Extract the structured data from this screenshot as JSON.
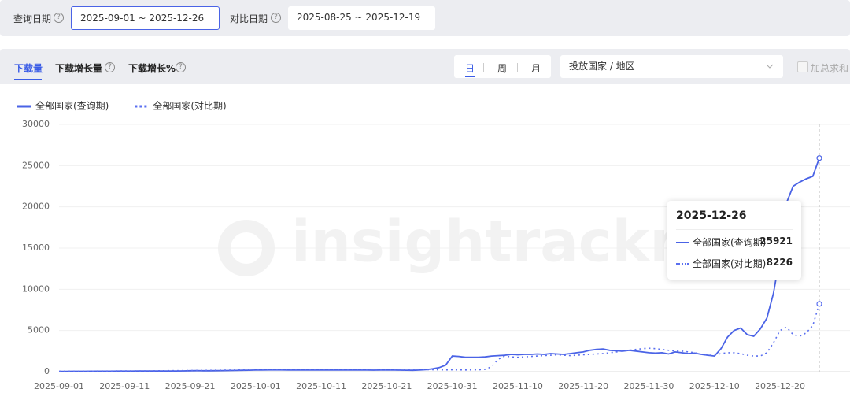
{
  "filters": {
    "query_label": "查询日期",
    "query_range": "2025-09-01 ~ 2025-12-26",
    "compare_label": "对比日期",
    "compare_range": "2025-08-25 ~ 2025-12-19"
  },
  "tabs": [
    "下载量",
    "下载增长量",
    "下载增长%"
  ],
  "granularity": [
    "日",
    "周",
    "月"
  ],
  "region_select": "投放国家 / 地区",
  "sum_checkbox": "加总求和",
  "watermark": "insightrackr",
  "chart_data": {
    "type": "line",
    "categories": [
      "2025-09-01",
      null,
      null,
      null,
      null,
      null,
      null,
      null,
      null,
      null,
      "2025-09-11",
      null,
      null,
      null,
      null,
      null,
      null,
      null,
      null,
      null,
      "2025-09-21",
      null,
      null,
      null,
      null,
      null,
      null,
      null,
      null,
      null,
      "2025-10-01",
      null,
      null,
      null,
      null,
      null,
      null,
      null,
      null,
      null,
      "2025-10-11",
      null,
      null,
      null,
      null,
      null,
      null,
      null,
      null,
      null,
      "2025-10-21",
      null,
      null,
      null,
      null,
      null,
      null,
      null,
      null,
      null,
      "2025-10-31",
      null,
      null,
      null,
      null,
      null,
      null,
      null,
      null,
      null,
      "2025-11-10",
      null,
      null,
      null,
      null,
      null,
      null,
      null,
      null,
      null,
      "2025-11-20",
      null,
      null,
      null,
      null,
      null,
      null,
      null,
      null,
      null,
      "2025-11-30",
      null,
      null,
      null,
      null,
      null,
      null,
      null,
      null,
      null,
      "2025-12-10",
      null,
      null,
      null,
      null,
      null,
      null,
      null,
      null,
      null,
      "2025-12-20",
      null,
      null,
      null,
      null,
      null,
      null
    ],
    "series": [
      {
        "name": "全部国家(查询期)",
        "color": "#4a63e6",
        "style": "solid",
        "values": [
          30,
          40,
          50,
          50,
          50,
          60,
          60,
          60,
          60,
          70,
          70,
          70,
          80,
          80,
          80,
          80,
          90,
          90,
          90,
          100,
          110,
          120,
          110,
          110,
          120,
          130,
          140,
          150,
          170,
          180,
          200,
          210,
          220,
          230,
          220,
          210,
          210,
          200,
          200,
          210,
          220,
          210,
          200,
          200,
          210,
          200,
          210,
          200,
          190,
          200,
          210,
          200,
          190,
          180,
          170,
          200,
          250,
          350,
          500,
          800,
          1900,
          1850,
          1750,
          1750,
          1750,
          1800,
          1900,
          1950,
          2000,
          2100,
          2050,
          2100,
          2100,
          2150,
          2100,
          2200,
          2150,
          2100,
          2200,
          2300,
          2400,
          2600,
          2700,
          2750,
          2600,
          2550,
          2500,
          2600,
          2500,
          2400,
          2300,
          2250,
          2300,
          2150,
          2400,
          2300,
          2200,
          2250,
          2100,
          2000,
          1900,
          2800,
          4200,
          5000,
          5300,
          4500,
          4300,
          5200,
          6500,
          9500,
          14000,
          20500,
          22500,
          23000,
          23400,
          23700,
          25921
        ]
      },
      {
        "name": "全部国家(对比期)",
        "color": "#5a6ff0",
        "style": "dotted",
        "values": [
          50,
          60,
          60,
          60,
          70,
          70,
          80,
          80,
          80,
          90,
          90,
          90,
          100,
          100,
          100,
          110,
          110,
          120,
          120,
          130,
          130,
          140,
          150,
          160,
          170,
          180,
          190,
          200,
          210,
          220,
          250,
          260,
          270,
          280,
          280,
          270,
          270,
          260,
          260,
          270,
          280,
          290,
          270,
          260,
          250,
          260,
          270,
          260,
          250,
          240,
          230,
          240,
          230,
          220,
          230,
          240,
          250,
          240,
          230,
          220,
          230,
          220,
          210,
          220,
          230,
          300,
          600,
          1500,
          1900,
          1800,
          1750,
          1800,
          1850,
          1900,
          1950,
          2000,
          2050,
          2000,
          1950,
          2000,
          2050,
          2100,
          2150,
          2200,
          2300,
          2400,
          2500,
          2600,
          2700,
          2800,
          2850,
          2800,
          2700,
          2600,
          2500,
          2500,
          2400,
          2300,
          2100,
          2000,
          2000,
          2200,
          2300,
          2300,
          2200,
          2000,
          1900,
          1900,
          2300,
          3500,
          5000,
          5400,
          4500,
          4300,
          4700,
          5600,
          8226
        ]
      }
    ],
    "ylim": [
      0,
      30000
    ],
    "yticks": [
      0,
      5000,
      10000,
      15000,
      20000,
      25000,
      30000
    ],
    "grid": true,
    "tooltip": {
      "title": "2025-12-26"
    }
  }
}
